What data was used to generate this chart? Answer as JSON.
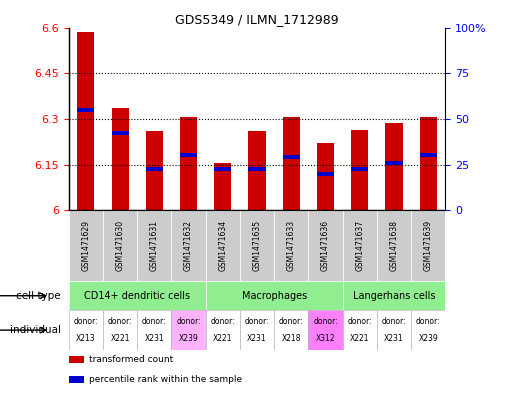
{
  "title": "GDS5349 / ILMN_1712989",
  "samples": [
    "GSM1471629",
    "GSM1471630",
    "GSM1471631",
    "GSM1471632",
    "GSM1471634",
    "GSM1471635",
    "GSM1471633",
    "GSM1471636",
    "GSM1471637",
    "GSM1471638",
    "GSM1471639"
  ],
  "red_values": [
    6.585,
    6.335,
    6.26,
    6.305,
    6.155,
    6.26,
    6.305,
    6.22,
    6.265,
    6.285,
    6.305
  ],
  "blue_values": [
    6.33,
    6.255,
    6.135,
    6.18,
    6.135,
    6.135,
    6.175,
    6.12,
    6.135,
    6.155,
    6.18
  ],
  "ymin": 6.0,
  "ymax": 6.6,
  "yticks": [
    6.0,
    6.15,
    6.3,
    6.45,
    6.6
  ],
  "ytick_labels": [
    "6",
    "6.15",
    "6.3",
    "6.45",
    "6.6"
  ],
  "right_yticks": [
    0.0,
    0.25,
    0.5,
    0.75,
    1.0
  ],
  "right_ytick_labels": [
    "0",
    "25",
    "50",
    "75",
    "100%"
  ],
  "cell_type_groups": [
    {
      "label": "CD14+ dendritic cells",
      "start": 0,
      "end": 3,
      "color": "#90EE90"
    },
    {
      "label": "Macrophages",
      "start": 4,
      "end": 7,
      "color": "#90EE90"
    },
    {
      "label": "Langerhans cells",
      "start": 8,
      "end": 10,
      "color": "#90EE90"
    }
  ],
  "individuals": [
    "X213",
    "X221",
    "X231",
    "X239",
    "X221",
    "X231",
    "X218",
    "X312",
    "X221",
    "X231",
    "X239"
  ],
  "ind_colors": [
    "#ffffff",
    "#ffffff",
    "#ffffff",
    "#FFB3FF",
    "#ffffff",
    "#ffffff",
    "#ffffff",
    "#FF80FF",
    "#ffffff",
    "#ffffff",
    "#ffffff"
  ],
  "bar_width": 0.5,
  "gsm_bg_color": "#CCCCCC",
  "legend_labels": [
    "transformed count",
    "percentile rank within the sample"
  ],
  "legend_colors": [
    "#CC0000",
    "#0000CC"
  ]
}
